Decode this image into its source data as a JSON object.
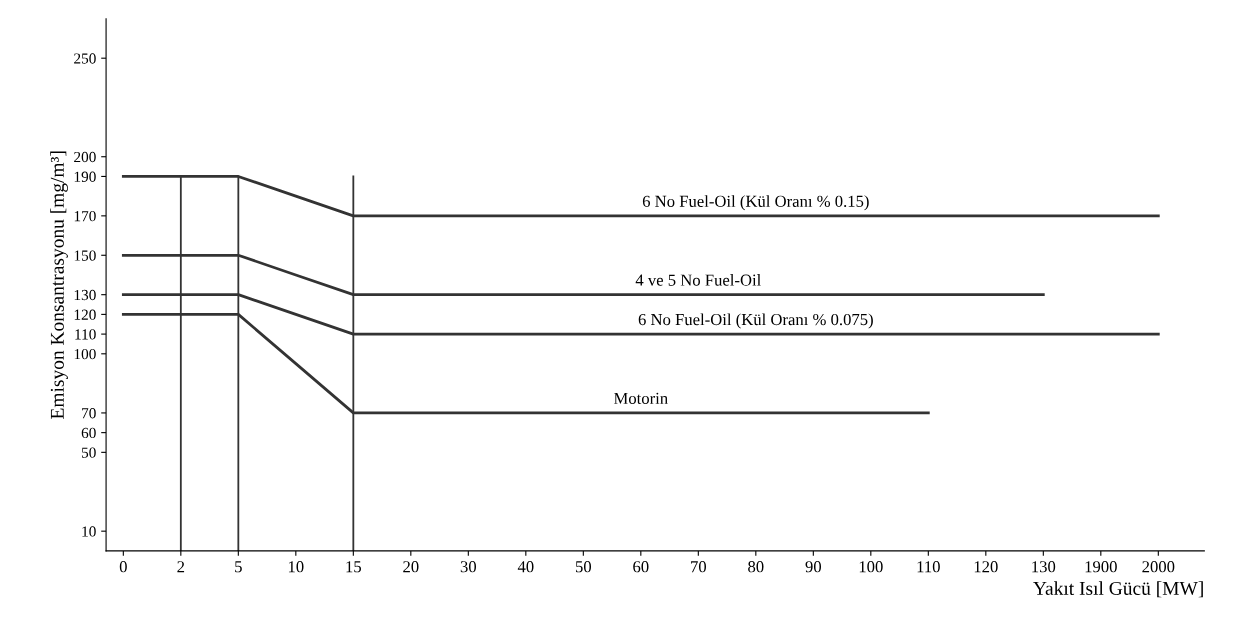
{
  "chart_data": {
    "type": "line",
    "xlabel": "Yakıt Isıl Gücü [MW]",
    "ylabel": "Emisyon Konsantrasyonu [mg/m³]",
    "categories": [
      "0",
      "2",
      "5",
      "10",
      "15",
      "20",
      "30",
      "40",
      "50",
      "60",
      "70",
      "80",
      "90",
      "100",
      "110",
      "120",
      "130",
      "1900",
      "2000"
    ],
    "series": [
      {
        "name": "6 No Fuel-Oil (Kül Oranı % 0.15)",
        "color": "#333333",
        "values": [
          190,
          190,
          190,
          180,
          170,
          170,
          170,
          170,
          170,
          170,
          170,
          170,
          170,
          170,
          170,
          170,
          170,
          170,
          170
        ]
      },
      {
        "name": "4 ve 5 No Fuel-Oil",
        "color": "#333333",
        "values": [
          150,
          150,
          150,
          140,
          130,
          130,
          130,
          130,
          130,
          130,
          130,
          130,
          130,
          130,
          130,
          130,
          130,
          null,
          null
        ]
      },
      {
        "name": "6 No Fuel-Oil (Kül Oranı % 0.075)",
        "color": "#333333",
        "values": [
          130,
          130,
          130,
          120,
          110,
          110,
          110,
          110,
          110,
          110,
          110,
          110,
          110,
          110,
          110,
          110,
          110,
          110,
          110
        ]
      },
      {
        "name": "Motorin",
        "color": "#333333",
        "values": [
          120,
          120,
          120,
          95,
          70,
          70,
          70,
          70,
          70,
          70,
          70,
          70,
          70,
          70,
          70,
          null,
          null,
          null,
          null
        ]
      }
    ],
    "ref_lines": [
      {
        "axis": "x",
        "value": "2",
        "color": "#333333"
      },
      {
        "axis": "x",
        "value": "5",
        "color": "#333333"
      },
      {
        "axis": "x",
        "value": "15",
        "color": "#333333"
      }
    ],
    "ylim": [
      0,
      270
    ],
    "yticks": [
      10,
      50,
      60,
      70,
      100,
      110,
      120,
      130,
      150,
      170,
      190,
      200,
      250
    ],
    "grid": false,
    "legend": false,
    "marker": "none",
    "line_style": "solid"
  }
}
